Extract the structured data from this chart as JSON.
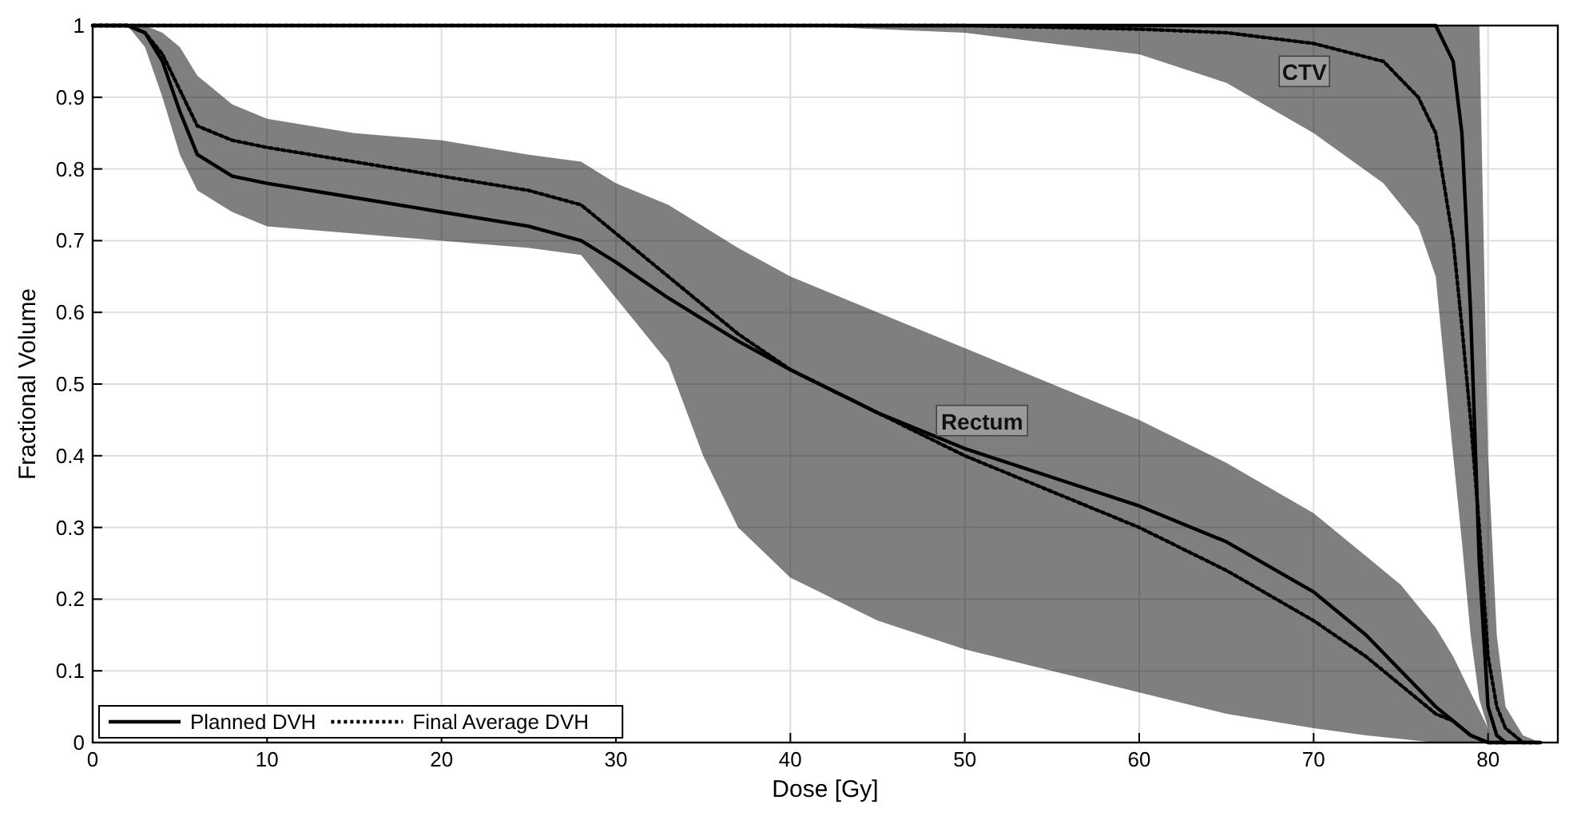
{
  "chart_data": {
    "type": "line",
    "xlabel": "Dose [Gy]",
    "ylabel": "Fractional Volume",
    "xlim": [
      0,
      84
    ],
    "ylim": [
      0,
      1
    ],
    "xticks": [
      0,
      10,
      20,
      30,
      40,
      50,
      60,
      70,
      80
    ],
    "yticks": [
      0,
      0.1,
      0.2,
      0.3,
      0.4,
      0.5,
      0.6,
      0.7,
      0.8,
      0.9,
      1
    ],
    "grid": true,
    "legend": "bottom left",
    "marker": "none",
    "annotations": [
      "CTV",
      "Rectum"
    ],
    "series": [
      {
        "name": "Planned DVH",
        "color": "#000000",
        "line_style": "solid",
        "x": [
          0,
          2,
          3,
          4,
          5,
          6,
          8,
          10,
          15,
          20,
          25,
          28,
          30,
          33,
          35,
          37,
          40,
          45,
          50,
          55,
          60,
          65,
          70,
          73,
          75,
          77,
          78,
          79,
          80,
          81
        ],
        "values": [
          1,
          1,
          0.99,
          0.95,
          0.88,
          0.82,
          0.79,
          0.78,
          0.76,
          0.74,
          0.72,
          0.7,
          0.67,
          0.62,
          0.59,
          0.56,
          0.52,
          0.46,
          0.41,
          0.37,
          0.33,
          0.28,
          0.21,
          0.15,
          0.1,
          0.05,
          0.03,
          0.01,
          0,
          0
        ],
        "upper": [
          1,
          1,
          1,
          0.99,
          0.97,
          0.93,
          0.89,
          0.87,
          0.85,
          0.84,
          0.82,
          0.81,
          0.78,
          0.75,
          0.72,
          0.69,
          0.65,
          0.6,
          0.55,
          0.5,
          0.45,
          0.39,
          0.32,
          0.26,
          0.22,
          0.16,
          0.12,
          0.07,
          0.02,
          0
        ],
        "lower": [
          1,
          1,
          0.97,
          0.9,
          0.82,
          0.77,
          0.74,
          0.72,
          0.71,
          0.7,
          0.69,
          0.68,
          0.62,
          0.53,
          0.4,
          0.3,
          0.23,
          0.17,
          0.13,
          0.1,
          0.07,
          0.04,
          0.02,
          0.01,
          0.005,
          0,
          0,
          0,
          0,
          0
        ]
      },
      {
        "name": "Final Average DVH",
        "color": "#000000",
        "line_style": "dotted",
        "x": [
          0,
          2,
          3,
          4,
          5,
          6,
          8,
          10,
          15,
          20,
          25,
          28,
          30,
          33,
          35,
          37,
          40,
          45,
          50,
          55,
          60,
          65,
          70,
          73,
          75,
          77,
          78,
          79,
          80,
          81
        ],
        "values": [
          1,
          1,
          0.99,
          0.96,
          0.91,
          0.86,
          0.84,
          0.83,
          0.81,
          0.79,
          0.77,
          0.75,
          0.71,
          0.65,
          0.61,
          0.57,
          0.52,
          0.46,
          0.4,
          0.35,
          0.3,
          0.24,
          0.17,
          0.12,
          0.08,
          0.04,
          0.03,
          0.01,
          0,
          0
        ]
      },
      {
        "color": "#000000",
        "line_style": "solid",
        "x": [
          0,
          40,
          50,
          60,
          65,
          70,
          74,
          76,
          77,
          78,
          78.5,
          79,
          79.5,
          80,
          80.5,
          81,
          82,
          83
        ],
        "values": [
          1,
          1,
          1,
          1,
          1,
          1,
          1,
          1,
          1,
          0.95,
          0.85,
          0.6,
          0.25,
          0.05,
          0.01,
          0,
          0,
          0
        ],
        "upper": [
          1,
          1,
          1,
          1,
          1,
          1,
          1,
          1,
          1,
          1,
          1,
          1,
          1,
          0.4,
          0.15,
          0.05,
          0.01,
          0
        ],
        "lower": [
          1,
          1,
          0.99,
          0.96,
          0.92,
          0.85,
          0.78,
          0.72,
          0.65,
          0.4,
          0.28,
          0.15,
          0.06,
          0.02,
          0.01,
          0,
          0,
          0
        ]
      },
      {
        "color": "#000000",
        "line_style": "dotted",
        "x": [
          0,
          40,
          50,
          60,
          65,
          70,
          74,
          76,
          77,
          78,
          78.5,
          79,
          79.5,
          80,
          80.5,
          81,
          82,
          83
        ],
        "values": [
          1,
          1,
          1,
          0.995,
          0.99,
          0.975,
          0.95,
          0.9,
          0.85,
          0.7,
          0.58,
          0.45,
          0.3,
          0.12,
          0.05,
          0.02,
          0,
          0
        ]
      }
    ]
  }
}
